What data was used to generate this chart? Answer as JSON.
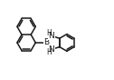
{
  "bg_color": "#ffffff",
  "line_color": "#1a1a1a",
  "line_width": 1.1,
  "font_size": 6.5,
  "label_color": "#1a1a1a",
  "xlim": [
    0,
    12.6
  ],
  "ylim": [
    0,
    8.8
  ]
}
